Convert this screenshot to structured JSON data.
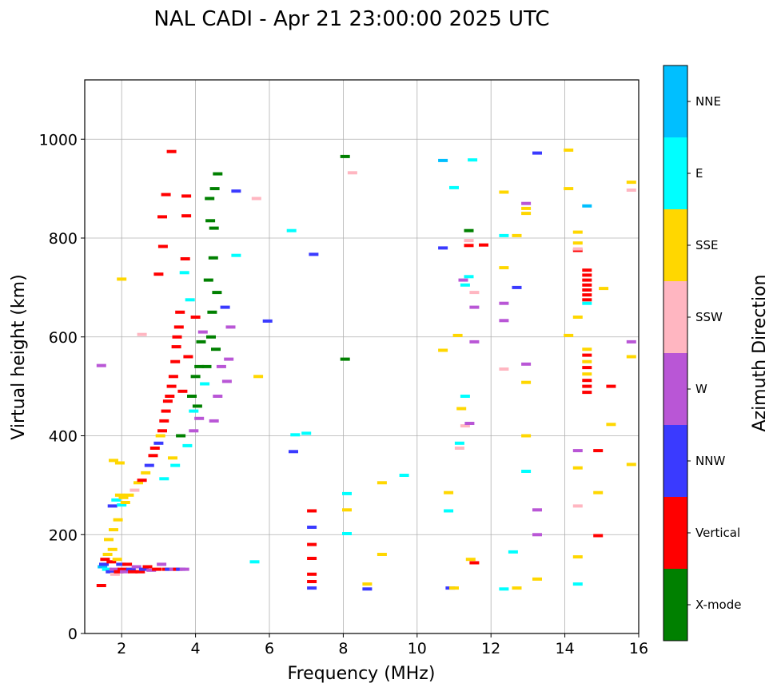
{
  "chart_data": {
    "type": "scatter",
    "title": "NAL CADI - Apr 21 23:00:00 2025 UTC",
    "xlabel": "Frequency (MHz)",
    "ylabel": "Virtual height (km)",
    "xlim": [
      1.0,
      16.0
    ],
    "ylim": [
      0,
      1120
    ],
    "xticks": [
      2,
      4,
      6,
      8,
      10,
      12,
      14,
      16
    ],
    "yticks": [
      0,
      200,
      400,
      600,
      800,
      1000
    ],
    "grid": true,
    "colorbar": {
      "label": "Azimuth Direction",
      "categories": [
        {
          "name": "X-mode",
          "color": "#008000"
        },
        {
          "name": "Vertical",
          "color": "#ff0000"
        },
        {
          "name": "NNW",
          "color": "#3a3aff"
        },
        {
          "name": "W",
          "color": "#b956d6"
        },
        {
          "name": "SSW",
          "color": "#ffb6c1"
        },
        {
          "name": "SSE",
          "color": "#ffd700"
        },
        {
          "name": "E",
          "color": "#00ffff"
        },
        {
          "name": "NNE",
          "color": "#00bfff"
        }
      ]
    },
    "points": [
      [
        1.45,
        97,
        "Vertical"
      ],
      [
        1.45,
        542,
        "W"
      ],
      [
        1.48,
        135,
        "NNE"
      ],
      [
        1.52,
        140,
        "NNW"
      ],
      [
        1.55,
        150,
        "Vertical"
      ],
      [
        1.6,
        130,
        "E"
      ],
      [
        1.62,
        160,
        "SSE"
      ],
      [
        1.65,
        190,
        "SSE"
      ],
      [
        1.7,
        125,
        "NNW"
      ],
      [
        1.72,
        145,
        "Vertical"
      ],
      [
        1.75,
        170,
        "SSE"
      ],
      [
        1.75,
        258,
        "NNW"
      ],
      [
        1.78,
        210,
        "SSE"
      ],
      [
        1.78,
        350,
        "SSE"
      ],
      [
        1.8,
        130,
        "W"
      ],
      [
        1.82,
        120,
        "SSW"
      ],
      [
        1.85,
        270,
        "E"
      ],
      [
        1.88,
        150,
        "SSE"
      ],
      [
        1.9,
        230,
        "SSE"
      ],
      [
        1.92,
        125,
        "Vertical"
      ],
      [
        1.95,
        280,
        "SSE"
      ],
      [
        1.95,
        345,
        "SSE"
      ],
      [
        1.98,
        140,
        "NNW"
      ],
      [
        2.0,
        260,
        "E"
      ],
      [
        2.0,
        717,
        "SSE"
      ],
      [
        2.02,
        130,
        "Vertical"
      ],
      [
        2.05,
        275,
        "SSE"
      ],
      [
        2.08,
        125,
        "W"
      ],
      [
        2.1,
        265,
        "SSE"
      ],
      [
        2.15,
        140,
        "Vertical"
      ],
      [
        2.2,
        280,
        "SSE"
      ],
      [
        2.25,
        130,
        "NNW"
      ],
      [
        2.3,
        125,
        "Vertical"
      ],
      [
        2.35,
        290,
        "SSW"
      ],
      [
        2.4,
        135,
        "W"
      ],
      [
        2.45,
        305,
        "SSE"
      ],
      [
        2.5,
        125,
        "Vertical"
      ],
      [
        2.55,
        310,
        "Vertical"
      ],
      [
        2.55,
        605,
        "SSW"
      ],
      [
        2.6,
        130,
        "NNW"
      ],
      [
        2.65,
        325,
        "SSE"
      ],
      [
        2.7,
        135,
        "Vertical"
      ],
      [
        2.75,
        340,
        "NNW"
      ],
      [
        2.8,
        128,
        "W"
      ],
      [
        2.85,
        360,
        "Vertical"
      ],
      [
        2.9,
        375,
        "Vertical"
      ],
      [
        2.95,
        130,
        "Vertical"
      ],
      [
        3.0,
        385,
        "NNW"
      ],
      [
        3.0,
        727,
        "Vertical"
      ],
      [
        3.05,
        400,
        "SSE"
      ],
      [
        3.08,
        140,
        "W"
      ],
      [
        3.1,
        410,
        "Vertical"
      ],
      [
        3.1,
        843,
        "Vertical"
      ],
      [
        3.12,
        783,
        "Vertical"
      ],
      [
        3.15,
        430,
        "Vertical"
      ],
      [
        3.15,
        313,
        "E"
      ],
      [
        3.2,
        450,
        "Vertical"
      ],
      [
        3.2,
        888,
        "Vertical"
      ],
      [
        3.22,
        130,
        "Vertical"
      ],
      [
        3.25,
        470,
        "Vertical"
      ],
      [
        3.3,
        480,
        "Vertical"
      ],
      [
        3.3,
        130,
        "NNW"
      ],
      [
        3.35,
        500,
        "Vertical"
      ],
      [
        3.35,
        975,
        "Vertical"
      ],
      [
        3.38,
        355,
        "SSE"
      ],
      [
        3.4,
        520,
        "Vertical"
      ],
      [
        3.42,
        130,
        "W"
      ],
      [
        3.45,
        550,
        "Vertical"
      ],
      [
        3.45,
        340,
        "E"
      ],
      [
        3.48,
        580,
        "Vertical"
      ],
      [
        3.5,
        600,
        "Vertical"
      ],
      [
        3.52,
        130,
        "Vertical"
      ],
      [
        3.55,
        620,
        "Vertical"
      ],
      [
        3.58,
        650,
        "Vertical"
      ],
      [
        3.6,
        400,
        "X-mode"
      ],
      [
        3.6,
        130,
        "NNW"
      ],
      [
        3.65,
        490,
        "Vertical"
      ],
      [
        3.7,
        730,
        "E"
      ],
      [
        3.7,
        130,
        "W"
      ],
      [
        3.72,
        758,
        "Vertical"
      ],
      [
        3.75,
        885,
        "Vertical"
      ],
      [
        3.75,
        845,
        "Vertical"
      ],
      [
        3.78,
        380,
        "E"
      ],
      [
        3.8,
        560,
        "Vertical"
      ],
      [
        3.85,
        675,
        "E"
      ],
      [
        3.9,
        480,
        "X-mode"
      ],
      [
        3.95,
        450,
        "E"
      ],
      [
        3.95,
        410,
        "W"
      ],
      [
        4.0,
        520,
        "X-mode"
      ],
      [
        4.0,
        640,
        "Vertical"
      ],
      [
        4.05,
        460,
        "X-mode"
      ],
      [
        4.1,
        540,
        "X-mode"
      ],
      [
        4.1,
        435,
        "W"
      ],
      [
        4.15,
        590,
        "X-mode"
      ],
      [
        4.2,
        610,
        "W"
      ],
      [
        4.25,
        505,
        "E"
      ],
      [
        4.3,
        540,
        "X-mode"
      ],
      [
        4.35,
        715,
        "X-mode"
      ],
      [
        4.38,
        880,
        "X-mode"
      ],
      [
        4.4,
        835,
        "X-mode"
      ],
      [
        4.42,
        600,
        "X-mode"
      ],
      [
        4.45,
        650,
        "X-mode"
      ],
      [
        4.48,
        760,
        "X-mode"
      ],
      [
        4.5,
        820,
        "X-mode"
      ],
      [
        4.5,
        430,
        "W"
      ],
      [
        4.52,
        900,
        "X-mode"
      ],
      [
        4.55,
        575,
        "X-mode"
      ],
      [
        4.58,
        690,
        "X-mode"
      ],
      [
        4.6,
        930,
        "X-mode"
      ],
      [
        4.6,
        480,
        "W"
      ],
      [
        4.7,
        540,
        "W"
      ],
      [
        4.8,
        660,
        "NNW"
      ],
      [
        4.85,
        510,
        "W"
      ],
      [
        4.9,
        555,
        "W"
      ],
      [
        4.95,
        620,
        "W"
      ],
      [
        5.1,
        895,
        "NNW"
      ],
      [
        5.1,
        765,
        "E"
      ],
      [
        5.6,
        145,
        "E"
      ],
      [
        5.65,
        880,
        "SSW"
      ],
      [
        5.7,
        520,
        "SSE"
      ],
      [
        5.95,
        632,
        "NNW"
      ],
      [
        6.6,
        815,
        "E"
      ],
      [
        6.65,
        368,
        "NNW"
      ],
      [
        6.7,
        402,
        "E"
      ],
      [
        7.0,
        405,
        "E"
      ],
      [
        7.15,
        248,
        "Vertical"
      ],
      [
        7.15,
        215,
        "NNW"
      ],
      [
        7.15,
        180,
        "Vertical"
      ],
      [
        7.15,
        152,
        "Vertical"
      ],
      [
        7.15,
        120,
        "Vertical"
      ],
      [
        7.15,
        105,
        "Vertical"
      ],
      [
        7.15,
        92,
        "NNW"
      ],
      [
        7.2,
        767,
        "NNW"
      ],
      [
        8.05,
        965,
        "X-mode"
      ],
      [
        8.05,
        555,
        "X-mode"
      ],
      [
        8.1,
        283,
        "E"
      ],
      [
        8.1,
        250,
        "SSE"
      ],
      [
        8.1,
        202,
        "E"
      ],
      [
        8.25,
        932,
        "SSW"
      ],
      [
        8.65,
        100,
        "SSE"
      ],
      [
        8.65,
        90,
        "NNW"
      ],
      [
        9.05,
        305,
        "SSE"
      ],
      [
        9.05,
        160,
        "SSE"
      ],
      [
        9.65,
        320,
        "E"
      ],
      [
        10.7,
        957,
        "NNE"
      ],
      [
        10.7,
        780,
        "NNW"
      ],
      [
        10.7,
        573,
        "SSE"
      ],
      [
        10.85,
        285,
        "SSE"
      ],
      [
        10.85,
        248,
        "E"
      ],
      [
        10.9,
        92,
        "NNW"
      ],
      [
        11.0,
        902,
        "E"
      ],
      [
        11.0,
        92,
        "SSE"
      ],
      [
        11.1,
        603,
        "SSE"
      ],
      [
        11.15,
        385,
        "E"
      ],
      [
        11.15,
        375,
        "SSW"
      ],
      [
        11.2,
        455,
        "SSE"
      ],
      [
        11.25,
        715,
        "W"
      ],
      [
        11.3,
        480,
        "E"
      ],
      [
        11.3,
        420,
        "SSW"
      ],
      [
        11.3,
        705,
        "E"
      ],
      [
        11.4,
        815,
        "X-mode"
      ],
      [
        11.4,
        795,
        "SSW"
      ],
      [
        11.4,
        785,
        "Vertical"
      ],
      [
        11.4,
        722,
        "E"
      ],
      [
        11.42,
        425,
        "W"
      ],
      [
        11.45,
        150,
        "SSE"
      ],
      [
        11.5,
        958,
        "E"
      ],
      [
        11.55,
        690,
        "SSW"
      ],
      [
        11.55,
        660,
        "W"
      ],
      [
        11.55,
        590,
        "W"
      ],
      [
        11.55,
        143,
        "Vertical"
      ],
      [
        11.8,
        786,
        "Vertical"
      ],
      [
        12.35,
        893,
        "SSE"
      ],
      [
        12.35,
        805,
        "E"
      ],
      [
        12.35,
        740,
        "SSE"
      ],
      [
        12.35,
        668,
        "W"
      ],
      [
        12.35,
        633,
        "W"
      ],
      [
        12.35,
        535,
        "SSW"
      ],
      [
        12.35,
        90,
        "E"
      ],
      [
        12.6,
        165,
        "E"
      ],
      [
        12.7,
        805,
        "SSE"
      ],
      [
        12.7,
        700,
        "NNW"
      ],
      [
        12.7,
        92,
        "SSE"
      ],
      [
        12.95,
        870,
        "W"
      ],
      [
        12.95,
        860,
        "SSE"
      ],
      [
        12.95,
        850,
        "SSE"
      ],
      [
        12.95,
        545,
        "W"
      ],
      [
        12.95,
        508,
        "SSE"
      ],
      [
        12.95,
        400,
        "SSE"
      ],
      [
        12.95,
        328,
        "E"
      ],
      [
        13.25,
        972,
        "NNW"
      ],
      [
        13.25,
        250,
        "W"
      ],
      [
        13.25,
        200,
        "W"
      ],
      [
        13.25,
        110,
        "SSE"
      ],
      [
        14.1,
        978,
        "SSE"
      ],
      [
        14.1,
        900,
        "SSE"
      ],
      [
        14.1,
        603,
        "SSE"
      ],
      [
        14.35,
        812,
        "SSE"
      ],
      [
        14.35,
        790,
        "SSE"
      ],
      [
        14.35,
        640,
        "SSE"
      ],
      [
        14.35,
        370,
        "W"
      ],
      [
        14.35,
        335,
        "SSE"
      ],
      [
        14.35,
        258,
        "SSW"
      ],
      [
        14.35,
        155,
        "SSE"
      ],
      [
        14.35,
        100,
        "E"
      ],
      [
        14.35,
        775,
        "Vertical"
      ],
      [
        14.35,
        778,
        "SSW"
      ],
      [
        14.6,
        865,
        "NNE"
      ],
      [
        14.6,
        735,
        "Vertical"
      ],
      [
        14.6,
        725,
        "Vertical"
      ],
      [
        14.6,
        715,
        "Vertical"
      ],
      [
        14.6,
        705,
        "Vertical"
      ],
      [
        14.6,
        695,
        "Vertical"
      ],
      [
        14.6,
        685,
        "Vertical"
      ],
      [
        14.6,
        675,
        "Vertical"
      ],
      [
        14.6,
        668,
        "E"
      ],
      [
        14.6,
        575,
        "SSE"
      ],
      [
        14.6,
        563,
        "Vertical"
      ],
      [
        14.6,
        550,
        "SSE"
      ],
      [
        14.6,
        538,
        "Vertical"
      ],
      [
        14.6,
        525,
        "SSE"
      ],
      [
        14.6,
        512,
        "Vertical"
      ],
      [
        14.6,
        500,
        "Vertical"
      ],
      [
        14.6,
        488,
        "Vertical"
      ],
      [
        14.9,
        370,
        "Vertical"
      ],
      [
        14.9,
        285,
        "SSE"
      ],
      [
        14.9,
        198,
        "Vertical"
      ],
      [
        15.05,
        698,
        "SSE"
      ],
      [
        15.25,
        500,
        "Vertical"
      ],
      [
        15.25,
        423,
        "SSE"
      ],
      [
        15.8,
        913,
        "SSE"
      ],
      [
        15.8,
        897,
        "SSW"
      ],
      [
        15.8,
        590,
        "W"
      ],
      [
        15.8,
        560,
        "SSE"
      ],
      [
        15.8,
        342,
        "SSE"
      ]
    ]
  }
}
